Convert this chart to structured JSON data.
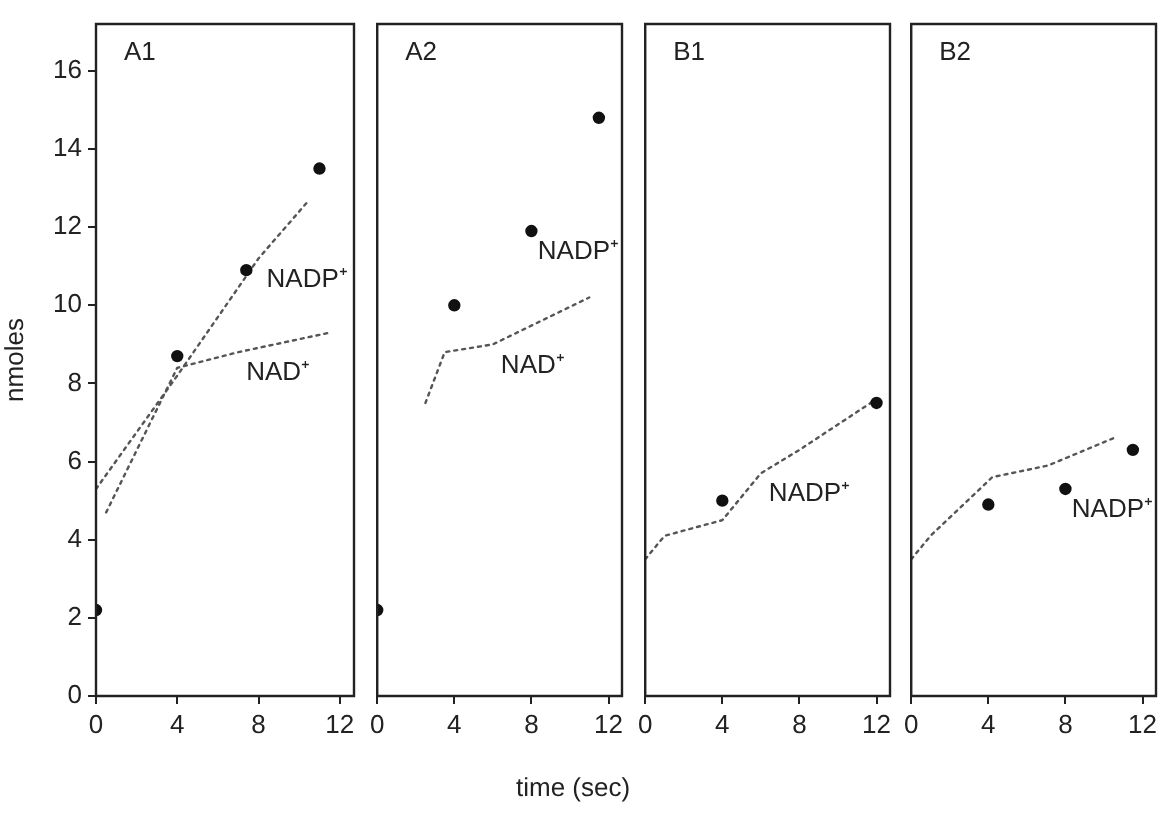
{
  "chart_data": [
    {
      "type": "scatter",
      "title": "A1",
      "ylabel": "nmoles",
      "xlim": [
        0,
        12.7
      ],
      "xticks": [
        0,
        4,
        8,
        12
      ],
      "ylim": [
        0,
        17.2
      ],
      "yticks": [
        0,
        2,
        4,
        6,
        8,
        10,
        12,
        14,
        16
      ],
      "grid": false,
      "legend": false,
      "series": [
        {
          "type": "scatter",
          "marker": "circle",
          "color": "#111111",
          "x": [
            0,
            4,
            7.4,
            11
          ],
          "values": [
            2.2,
            8.7,
            10.9,
            13.5
          ]
        },
        {
          "name": "NADP⁺",
          "type": "line",
          "marker": "none",
          "line_style": "dotted",
          "color": "#555555",
          "x": [
            0,
            4,
            8,
            10.5
          ],
          "values": [
            5.3,
            8.2,
            11.2,
            12.7
          ]
        },
        {
          "name": "NAD⁺",
          "type": "line",
          "marker": "none",
          "line_style": "dotted",
          "color": "#555555",
          "x": [
            0.5,
            4,
            7,
            11.5
          ],
          "values": [
            4.7,
            8.4,
            8.8,
            9.3
          ]
        }
      ]
    },
    {
      "type": "scatter",
      "title": "A2",
      "xlabel": "time (sec)",
      "xlim": [
        0,
        12.7
      ],
      "xticks": [
        0,
        4,
        8,
        12
      ],
      "ylim": [
        0,
        17.2
      ],
      "yticks": [
        0,
        2,
        4,
        6,
        8,
        10,
        12,
        14,
        16
      ],
      "tick_labels": "x",
      "grid": false,
      "legend": false,
      "series": [
        {
          "name": "NADP⁺",
          "type": "scatter",
          "marker": "circle",
          "color": "#111111",
          "x": [
            0,
            4,
            8,
            11.5
          ],
          "values": [
            2.2,
            10,
            11.9,
            14.8
          ]
        },
        {
          "name": "NAD⁺",
          "type": "line",
          "marker": "none",
          "line_style": "dotted",
          "color": "#555555",
          "x": [
            2.5,
            3.5,
            6,
            11
          ],
          "values": [
            7.5,
            8.8,
            9,
            10.2
          ]
        }
      ]
    },
    {
      "type": "scatter",
      "title": "B1",
      "xlim": [
        0,
        12.7
      ],
      "xticks": [
        0,
        4,
        8,
        12
      ],
      "ylim": [
        0,
        17.2
      ],
      "yticks": [
        0,
        2,
        4,
        6,
        8,
        10,
        12,
        14,
        16
      ],
      "tick_labels": "x",
      "grid": false,
      "legend": false,
      "series": [
        {
          "type": "scatter",
          "marker": "circle",
          "color": "#111111",
          "x": [
            4,
            12
          ],
          "values": [
            5,
            7.5
          ]
        },
        {
          "name": "NADP⁺",
          "type": "line",
          "marker": "none",
          "line_style": "dotted",
          "color": "#555555",
          "x": [
            0,
            1,
            4,
            6,
            8,
            12
          ],
          "values": [
            3.5,
            4.1,
            4.5,
            5.7,
            6.3,
            7.6
          ]
        }
      ]
    },
    {
      "type": "scatter",
      "title": "B2",
      "xlim": [
        0,
        12.7
      ],
      "xticks": [
        0,
        4,
        8,
        12
      ],
      "ylim": [
        0,
        17.2
      ],
      "yticks": [
        0,
        2,
        4,
        6,
        8,
        10,
        12,
        14,
        16
      ],
      "tick_labels": "x",
      "grid": false,
      "legend": false,
      "series": [
        {
          "name": "NADP⁺",
          "type": "scatter",
          "marker": "circle",
          "color": "#111111",
          "x": [
            4,
            8,
            11.5
          ],
          "values": [
            4.9,
            5.3,
            6.3
          ]
        },
        {
          "type": "line",
          "marker": "none",
          "line_style": "dotted",
          "color": "#555555",
          "x": [
            0,
            1,
            4.2,
            7.1,
            10.5
          ],
          "values": [
            3.5,
            4.1,
            5.6,
            5.9,
            6.6
          ]
        }
      ]
    }
  ]
}
